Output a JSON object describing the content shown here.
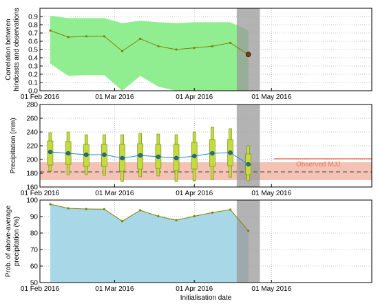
{
  "figure": {
    "x_axis_label": "Initialisation date",
    "x_tick_labels": [
      "01 Feb 2016",
      "01 Mar 2016",
      "01 Apr 2016",
      "01 May 2016"
    ],
    "colors": {
      "corr_band": "#90ee90",
      "corr_line": "#808000",
      "box_fill": "#c4dd3c",
      "box_edge": "#6f7f10",
      "mean_line": "#1f86c8",
      "mean_marker": "#1f6f8a",
      "clim_band": "#f2b8a8",
      "observed": "#e8775a",
      "prob_fill": "#a8d8e8",
      "prob_line": "#808000",
      "gray_band": "#9a9a9a"
    }
  },
  "chart_data": [
    {
      "type": "area",
      "ylabel_line1": "Correlation between",
      "ylabel_line2": "hindcasts and observations",
      "ylim": [
        0.0,
        1.0
      ],
      "ytick_labels": [
        "0.0",
        "0.1",
        "0.2",
        "0.3",
        "0.4",
        "0.5",
        "0.6",
        "0.7",
        "0.8",
        "0.9"
      ],
      "grid": true,
      "x": [
        "2016-02-05",
        "2016-02-12",
        "2016-02-19",
        "2016-02-26",
        "2016-03-04",
        "2016-03-11",
        "2016-03-18",
        "2016-03-25",
        "2016-04-01",
        "2016-04-08",
        "2016-04-15",
        "2016-04-22"
      ],
      "series": [
        {
          "values": [
            0.73,
            0.65,
            0.66,
            0.66,
            0.48,
            0.63,
            0.54,
            0.5,
            0.52,
            0.54,
            0.58,
            0.44
          ],
          "upper": [
            0.91,
            0.88,
            0.88,
            0.88,
            0.82,
            0.85,
            0.83,
            0.82,
            0.83,
            0.83,
            0.83,
            0.73
          ],
          "lower": [
            0.33,
            0.18,
            0.19,
            0.19,
            0.0,
            0.18,
            0.05,
            0.0,
            0.0,
            0.0,
            0.0,
            0.0
          ]
        }
      ],
      "highlight_date": "2016-04-22"
    },
    {
      "type": "box",
      "ylabel": "Precipitation (mm)",
      "ylim": [
        160,
        280
      ],
      "ytick_labels": [
        "160",
        "180",
        "200",
        "220",
        "240",
        "260",
        "280"
      ],
      "grid": true,
      "x": [
        "2016-02-05",
        "2016-02-12",
        "2016-02-19",
        "2016-02-26",
        "2016-03-04",
        "2016-03-11",
        "2016-03-18",
        "2016-03-25",
        "2016-04-01",
        "2016-04-08",
        "2016-04-15",
        "2016-04-22"
      ],
      "boxes": [
        {
          "whislo": 183,
          "q1": 192,
          "med": 211,
          "q3": 227,
          "whishi": 239,
          "mean": 211
        },
        {
          "whislo": 178,
          "q1": 193,
          "med": 208,
          "q3": 226,
          "whishi": 240,
          "mean": 209
        },
        {
          "whislo": 178,
          "q1": 190,
          "med": 206,
          "q3": 222,
          "whishi": 236,
          "mean": 207
        },
        {
          "whislo": 177,
          "q1": 190,
          "med": 206,
          "q3": 222,
          "whishi": 236,
          "mean": 207
        },
        {
          "whislo": 168,
          "q1": 183,
          "med": 201,
          "q3": 222,
          "whishi": 236,
          "mean": 202
        },
        {
          "whislo": 175,
          "q1": 186,
          "med": 206,
          "q3": 223,
          "whishi": 238,
          "mean": 206
        },
        {
          "whislo": 176,
          "q1": 187,
          "med": 204,
          "q3": 222,
          "whishi": 237,
          "mean": 204
        },
        {
          "whislo": 168,
          "q1": 184,
          "med": 203,
          "q3": 222,
          "whishi": 236,
          "mean": 202
        },
        {
          "whislo": 169,
          "q1": 186,
          "med": 205,
          "q3": 225,
          "whishi": 240,
          "mean": 205
        },
        {
          "whislo": 171,
          "q1": 190,
          "med": 209,
          "q3": 229,
          "whishi": 247,
          "mean": 209
        },
        {
          "whislo": 174,
          "q1": 191,
          "med": 210,
          "q3": 229,
          "whishi": 245,
          "mean": 210
        },
        {
          "whislo": 169,
          "q1": 178,
          "med": 193,
          "q3": 208,
          "whishi": 220,
          "mean": 193
        }
      ],
      "climatology": {
        "low": 170,
        "high": 196,
        "mean": 182
      },
      "observed": {
        "label": "Observed MJJ",
        "value": 201,
        "start": "2016-05-01"
      }
    },
    {
      "type": "area",
      "ylabel_line1": "Prob. of above-average",
      "ylabel_line2": "precipitation (%)",
      "ylim": [
        50,
        100
      ],
      "ytick_labels": [
        "50",
        "60",
        "70",
        "80",
        "90",
        "100"
      ],
      "grid": true,
      "x": [
        "2016-02-05",
        "2016-02-12",
        "2016-02-19",
        "2016-02-26",
        "2016-03-04",
        "2016-03-11",
        "2016-03-18",
        "2016-03-25",
        "2016-04-01",
        "2016-04-08",
        "2016-04-15",
        "2016-04-22"
      ],
      "series": [
        {
          "values": [
            97.5,
            95.0,
            94.6,
            94.5,
            87.2,
            93.8,
            90.2,
            87.8,
            90.2,
            92.4,
            94.2,
            81.4
          ]
        }
      ]
    }
  ]
}
